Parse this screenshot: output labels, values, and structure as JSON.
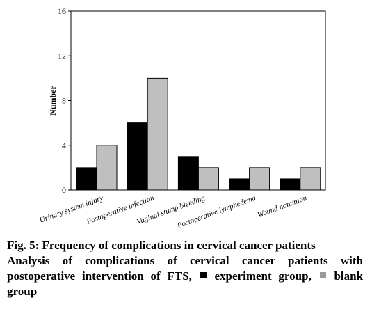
{
  "chart_data": {
    "type": "bar",
    "categories": [
      "Urinary system injury",
      "Postoperative infection",
      "Vaginal stump bleeding",
      "Postoperative lymphedema",
      "Wound nonunion"
    ],
    "series": [
      {
        "name": "experiment group",
        "color": "#000000",
        "values": [
          2,
          6,
          3,
          1,
          1
        ]
      },
      {
        "name": "blank group",
        "color": "#bfbfbf",
        "values": [
          4,
          10,
          2,
          2,
          2
        ]
      }
    ],
    "ylabel": "Number",
    "xlabel": "",
    "ylim": [
      0,
      16
    ],
    "yticks": [
      0,
      4,
      8,
      12,
      16
    ],
    "grid": false
  },
  "caption": {
    "title": "Fig. 5: Frequency of complications in cervical cancer patients",
    "description_prefix": "Analysis of complications of cervical cancer patients with postoperative intervention of FTS,",
    "legend_experiment": "experiment group,",
    "legend_blank": "blank group"
  }
}
